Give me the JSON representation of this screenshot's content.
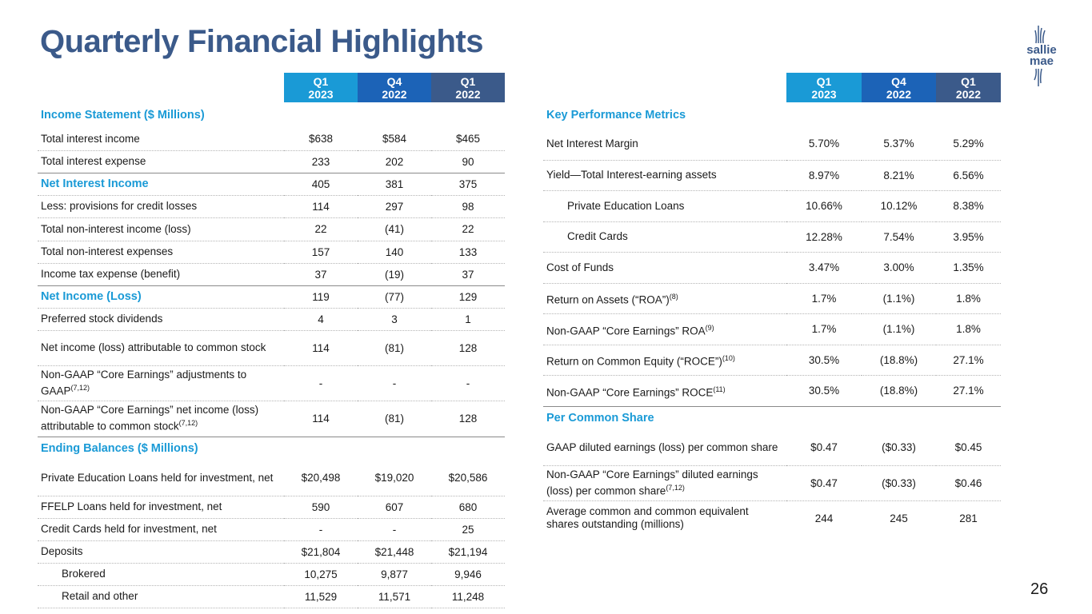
{
  "title": "Quarterly Financial Highlights",
  "logo": {
    "line1": "sallie",
    "line2": "mae"
  },
  "page_number": "26",
  "periods": [
    {
      "q": "Q1",
      "y": "2023"
    },
    {
      "q": "Q4",
      "y": "2022"
    },
    {
      "q": "Q1",
      "y": "2022"
    }
  ],
  "left": {
    "section_income": "Income Statement ($ Millions)",
    "rows1": [
      {
        "label": "Total interest income",
        "v": [
          "$638",
          "$584",
          "$465"
        ]
      },
      {
        "label": "Total interest expense",
        "v": [
          "233",
          "202",
          "90"
        ]
      },
      {
        "label": "Net Interest Income",
        "v": [
          "405",
          "381",
          "375"
        ]
      },
      {
        "label": "Less: provisions for credit losses",
        "v": [
          "114",
          "297",
          "98"
        ]
      },
      {
        "label": "Total non-interest income (loss)",
        "v": [
          "22",
          "(41)",
          "22"
        ]
      },
      {
        "label": "Total non-interest expenses",
        "v": [
          "157",
          "140",
          "133"
        ]
      },
      {
        "label": "Income tax expense (benefit)",
        "v": [
          "37",
          "(19)",
          "37"
        ]
      },
      {
        "label": "Net Income (Loss)",
        "v": [
          "119",
          "(77)",
          "129"
        ]
      },
      {
        "label": "Preferred stock dividends",
        "v": [
          "4",
          "3",
          "1"
        ]
      },
      {
        "label": "Net income (loss) attributable to common stock",
        "v": [
          "114",
          "(81)",
          "128"
        ]
      },
      {
        "label": "Non-GAAP “Core Earnings” adjustments to GAAP",
        "sup": "(7,12)",
        "v": [
          "-",
          "-",
          "-"
        ]
      },
      {
        "label": "Non-GAAP “Core Earnings” net income (loss) attributable to common stock",
        "sup": "(7,12)",
        "v": [
          "114",
          "(81)",
          "128"
        ]
      }
    ],
    "section_balances": "Ending Balances ($ Millions)",
    "rows2": [
      {
        "label": "Private Education Loans held for investment, net",
        "v": [
          "$20,498",
          "$19,020",
          "$20,586"
        ]
      },
      {
        "label": "FFELP Loans held for investment, net",
        "v": [
          "590",
          "607",
          "680"
        ]
      },
      {
        "label": "Credit Cards held for investment, net",
        "v": [
          "-",
          "-",
          "25"
        ]
      },
      {
        "label": "Deposits",
        "v": [
          "$21,804",
          "$21,448",
          "$21,194"
        ]
      },
      {
        "label": "Brokered",
        "v": [
          "10,275",
          "9,877",
          "9,946"
        ]
      },
      {
        "label": "Retail and other",
        "v": [
          "11,529",
          "11,571",
          "11,248"
        ]
      }
    ]
  },
  "right": {
    "section_kpm": "Key Performance Metrics",
    "rows1": [
      {
        "label": "Net Interest Margin",
        "v": [
          "5.70%",
          "5.37%",
          "5.29%"
        ]
      },
      {
        "label": "Yield—Total Interest-earning assets",
        "v": [
          "8.97%",
          "8.21%",
          "6.56%"
        ]
      },
      {
        "label": "Private Education Loans",
        "v": [
          "10.66%",
          "10.12%",
          "8.38%"
        ]
      },
      {
        "label": "Credit Cards",
        "v": [
          "12.28%",
          "7.54%",
          "3.95%"
        ]
      },
      {
        "label": "Cost of Funds",
        "v": [
          "3.47%",
          "3.00%",
          "1.35%"
        ]
      },
      {
        "label": "Return on Assets (“ROA”)",
        "sup": "(8)",
        "v": [
          "1.7%",
          "(1.1%)",
          "1.8%"
        ]
      },
      {
        "label": "Non-GAAP “Core Earnings” ROA",
        "sup": "(9)",
        "v": [
          "1.7%",
          "(1.1%)",
          "1.8%"
        ]
      },
      {
        "label": "Return on Common Equity (“ROCE”)",
        "sup": "(10)",
        "v": [
          "30.5%",
          "(18.8%)",
          "27.1%"
        ]
      },
      {
        "label": "Non-GAAP “Core Earnings” ROCE",
        "sup": "(11)",
        "v": [
          "30.5%",
          "(18.8%)",
          "27.1%"
        ]
      }
    ],
    "section_share": "Per Common Share",
    "rows2": [
      {
        "label": "GAAP diluted earnings (loss) per common share",
        "v": [
          "$0.47",
          "($0.33)",
          "$0.45"
        ]
      },
      {
        "label": "Non-GAAP “Core Earnings” diluted earnings (loss) per common share",
        "sup": "(7,12)",
        "v": [
          "$0.47",
          "($0.33)",
          "$0.46"
        ]
      },
      {
        "label": "Average common and common equivalent shares outstanding (millions)",
        "v": [
          "244",
          "245",
          "281"
        ]
      }
    ]
  },
  "colors": {
    "title": "#3b5a8a",
    "accent": "#1a9ad6",
    "mid_blue": "#1c63b7",
    "navy": "#3b5a8a"
  }
}
